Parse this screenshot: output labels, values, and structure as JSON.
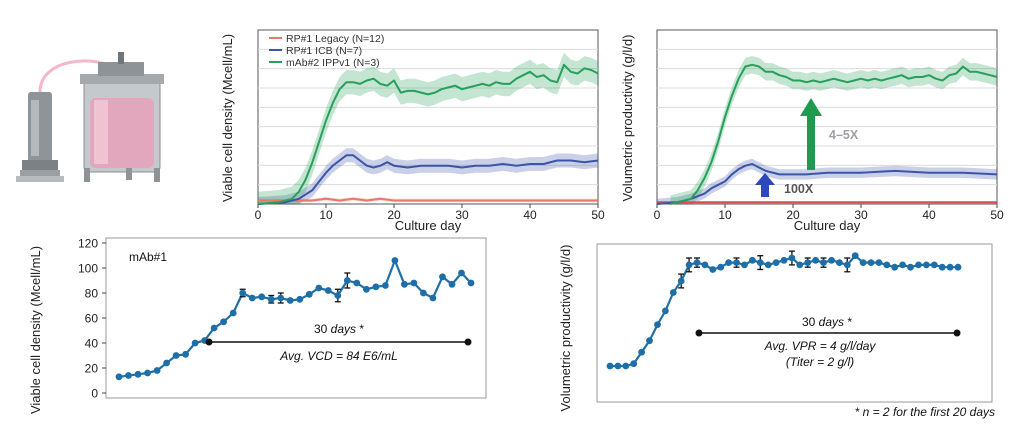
{
  "chart_data": [
    {
      "id": "top_vcd",
      "type": "line",
      "ylabel": "Viable cell density (Mcell/mL)",
      "xlabel": "Culture day",
      "xlim": [
        0,
        50
      ],
      "ylim": [
        0,
        100
      ],
      "xticks": [
        "0",
        "10",
        "20",
        "30",
        "40",
        "50"
      ],
      "legend": [
        "RP#1 Legacy (N=12)",
        "RP#1 ICB (N=7)",
        "mAb#2 IPPv1 (N=3)"
      ],
      "legend_position": "top-left",
      "series": [
        {
          "name": "RP#1 Legacy (N=12)",
          "color": "#e8796a",
          "x": [
            0,
            5,
            8,
            10,
            12,
            14,
            16,
            18,
            20,
            25,
            30,
            35,
            40,
            45,
            50
          ],
          "y": [
            2,
            2,
            2,
            3,
            2,
            3,
            2,
            3,
            2,
            2,
            2,
            2,
            2,
            2,
            2
          ],
          "band": 1
        },
        {
          "name": "RP#1 ICB (N=7)",
          "color": "#3d55a8",
          "x": [
            0,
            4,
            6,
            8,
            9,
            10,
            11,
            12,
            13,
            14,
            15,
            16,
            17,
            18,
            19,
            20,
            22,
            24,
            26,
            28,
            30,
            32,
            34,
            36,
            38,
            40,
            42,
            44,
            46,
            48,
            50
          ],
          "y": [
            0,
            1,
            3,
            8,
            13,
            18,
            22,
            25,
            28,
            28,
            25,
            22,
            21,
            22,
            24,
            22,
            21,
            22,
            22,
            22,
            21,
            22,
            22,
            23,
            22,
            23,
            23,
            25,
            25,
            24,
            25
          ],
          "band": 4
        },
        {
          "name": "mAb#2 IPPv1 (N=3)",
          "color": "#26a05a",
          "x": [
            0,
            3,
            5,
            6,
            7,
            8,
            9,
            10,
            11,
            12,
            13,
            14,
            15,
            16,
            17,
            18,
            19,
            20,
            21,
            22,
            23,
            24,
            25,
            26,
            27,
            28,
            29,
            30,
            31,
            32,
            33,
            34,
            35,
            36,
            37,
            38,
            39,
            40,
            41,
            42,
            43,
            44,
            45,
            46,
            47,
            48,
            49,
            50
          ],
          "y": [
            0,
            1,
            3,
            7,
            14,
            24,
            36,
            48,
            58,
            66,
            70,
            70,
            69,
            71,
            72,
            69,
            68,
            71,
            64,
            65,
            65,
            64,
            63,
            64,
            66,
            67,
            68,
            66,
            67,
            68,
            69,
            68,
            70,
            69,
            69,
            72,
            74,
            76,
            73,
            74,
            71,
            70,
            80,
            76,
            75,
            78,
            77,
            75
          ],
          "band": 7
        }
      ]
    },
    {
      "id": "top_vpr",
      "type": "line",
      "ylabel": "Volumetric productivity (g/l/d)",
      "xlabel": "Culture day",
      "xlim": [
        0,
        50
      ],
      "ylim": [
        0,
        100
      ],
      "xticks": [
        "0",
        "10",
        "20",
        "30",
        "40",
        "50"
      ],
      "annotations": [
        "4–5X",
        "100X"
      ],
      "series": [
        {
          "name": "RP#1 Legacy",
          "color": "#e14b4b",
          "x": [
            0,
            10,
            20,
            30,
            40,
            50
          ],
          "y": [
            1,
            1,
            1,
            1,
            1,
            1
          ],
          "band": 0
        },
        {
          "name": "RP#1 ICB",
          "color": "#3d55a8",
          "x": [
            0,
            3,
            5,
            7,
            8,
            10,
            11,
            12,
            13,
            14,
            15,
            16,
            18,
            20,
            22,
            25,
            28,
            30,
            35,
            40,
            45,
            50
          ],
          "y": [
            0,
            1,
            3,
            6,
            9,
            13,
            17,
            20,
            22,
            23,
            21,
            19,
            17,
            17,
            17,
            18,
            18,
            18,
            19,
            18,
            18,
            17
          ],
          "band": 3
        },
        {
          "name": "mAb#2 IPPv1",
          "color": "#26a05a",
          "x": [
            2,
            5,
            6,
            7,
            8,
            9,
            10,
            11,
            12,
            13,
            14,
            15,
            16,
            17,
            18,
            19,
            20,
            21,
            22,
            23,
            24,
            25,
            26,
            27,
            28,
            29,
            30,
            31,
            32,
            33,
            34,
            35,
            36,
            37,
            38,
            39,
            40,
            41,
            42,
            43,
            44,
            45,
            46,
            47,
            48,
            49,
            50
          ],
          "y": [
            0,
            3,
            8,
            15,
            24,
            36,
            50,
            62,
            72,
            79,
            80,
            79,
            76,
            76,
            74,
            73,
            71,
            71,
            70,
            71,
            70,
            71,
            72,
            71,
            70,
            71,
            72,
            71,
            72,
            71,
            72,
            73,
            74,
            72,
            73,
            73,
            74,
            72,
            71,
            74,
            75,
            79,
            76,
            76,
            75,
            74,
            73
          ],
          "band": 5
        }
      ]
    },
    {
      "id": "bottom_vcd",
      "type": "line",
      "ylabel": "Viable cell density (Mcell/mL)",
      "xlabel": "",
      "ylim": [
        0,
        120
      ],
      "yticks": [
        "0",
        "20",
        "40",
        "60",
        "80",
        "100",
        "120"
      ],
      "series_label": "mAb#1",
      "color": "#1e6fa8",
      "values": [
        13,
        14,
        15,
        16,
        18,
        24,
        30,
        31,
        40,
        42,
        52,
        57,
        64,
        80,
        76,
        77,
        75,
        76,
        74,
        75,
        79,
        84,
        82,
        78,
        90,
        88,
        83,
        85,
        86,
        106,
        87,
        88,
        80,
        76,
        93,
        87,
        96,
        88
      ],
      "errors": [
        0,
        0,
        0,
        0,
        0,
        0,
        0,
        0,
        0,
        0,
        0,
        0,
        0,
        3,
        0,
        0,
        3,
        4,
        0,
        0,
        0,
        0,
        0,
        5,
        6,
        0,
        0,
        0,
        0,
        0,
        0,
        0,
        0,
        0,
        0,
        0,
        0,
        0
      ],
      "bracket_label": "30",
      "bracket_unit": "days",
      "bracket_mark": "*",
      "avg_label": "Avg. VCD = 84 E6/mL"
    },
    {
      "id": "bottom_vpr",
      "type": "line",
      "ylabel": "Volumetric productivity (g/l/d)",
      "xlabel": "",
      "color": "#1e6fa8",
      "values": [
        13,
        13,
        13,
        14,
        19,
        24,
        31,
        37,
        45,
        50,
        57,
        58,
        57,
        55,
        56,
        58,
        58,
        57,
        59,
        58,
        57,
        58,
        59,
        60,
        57,
        58,
        59,
        58,
        59,
        58,
        57,
        61,
        58,
        58,
        58,
        57,
        56,
        57,
        56,
        57,
        57,
        57,
        56,
        56,
        56
      ],
      "errors": [
        0,
        0,
        0,
        0,
        0,
        0,
        0,
        0,
        0,
        3,
        3,
        2,
        0,
        0,
        0,
        0,
        2,
        0,
        0,
        3,
        0,
        0,
        0,
        3,
        0,
        2,
        0,
        2,
        0,
        0,
        3,
        0,
        0,
        0,
        0,
        0,
        0,
        0,
        0,
        0,
        0,
        0,
        0,
        0,
        0
      ],
      "bracket_label": "30",
      "bracket_unit": "days",
      "bracket_mark": "*",
      "avg_label": "Avg. VPR = 4 g/l/day",
      "titer_label": "(Titer = 2 g/l)"
    }
  ],
  "footnote": "* n = 2 for the first 20 days"
}
